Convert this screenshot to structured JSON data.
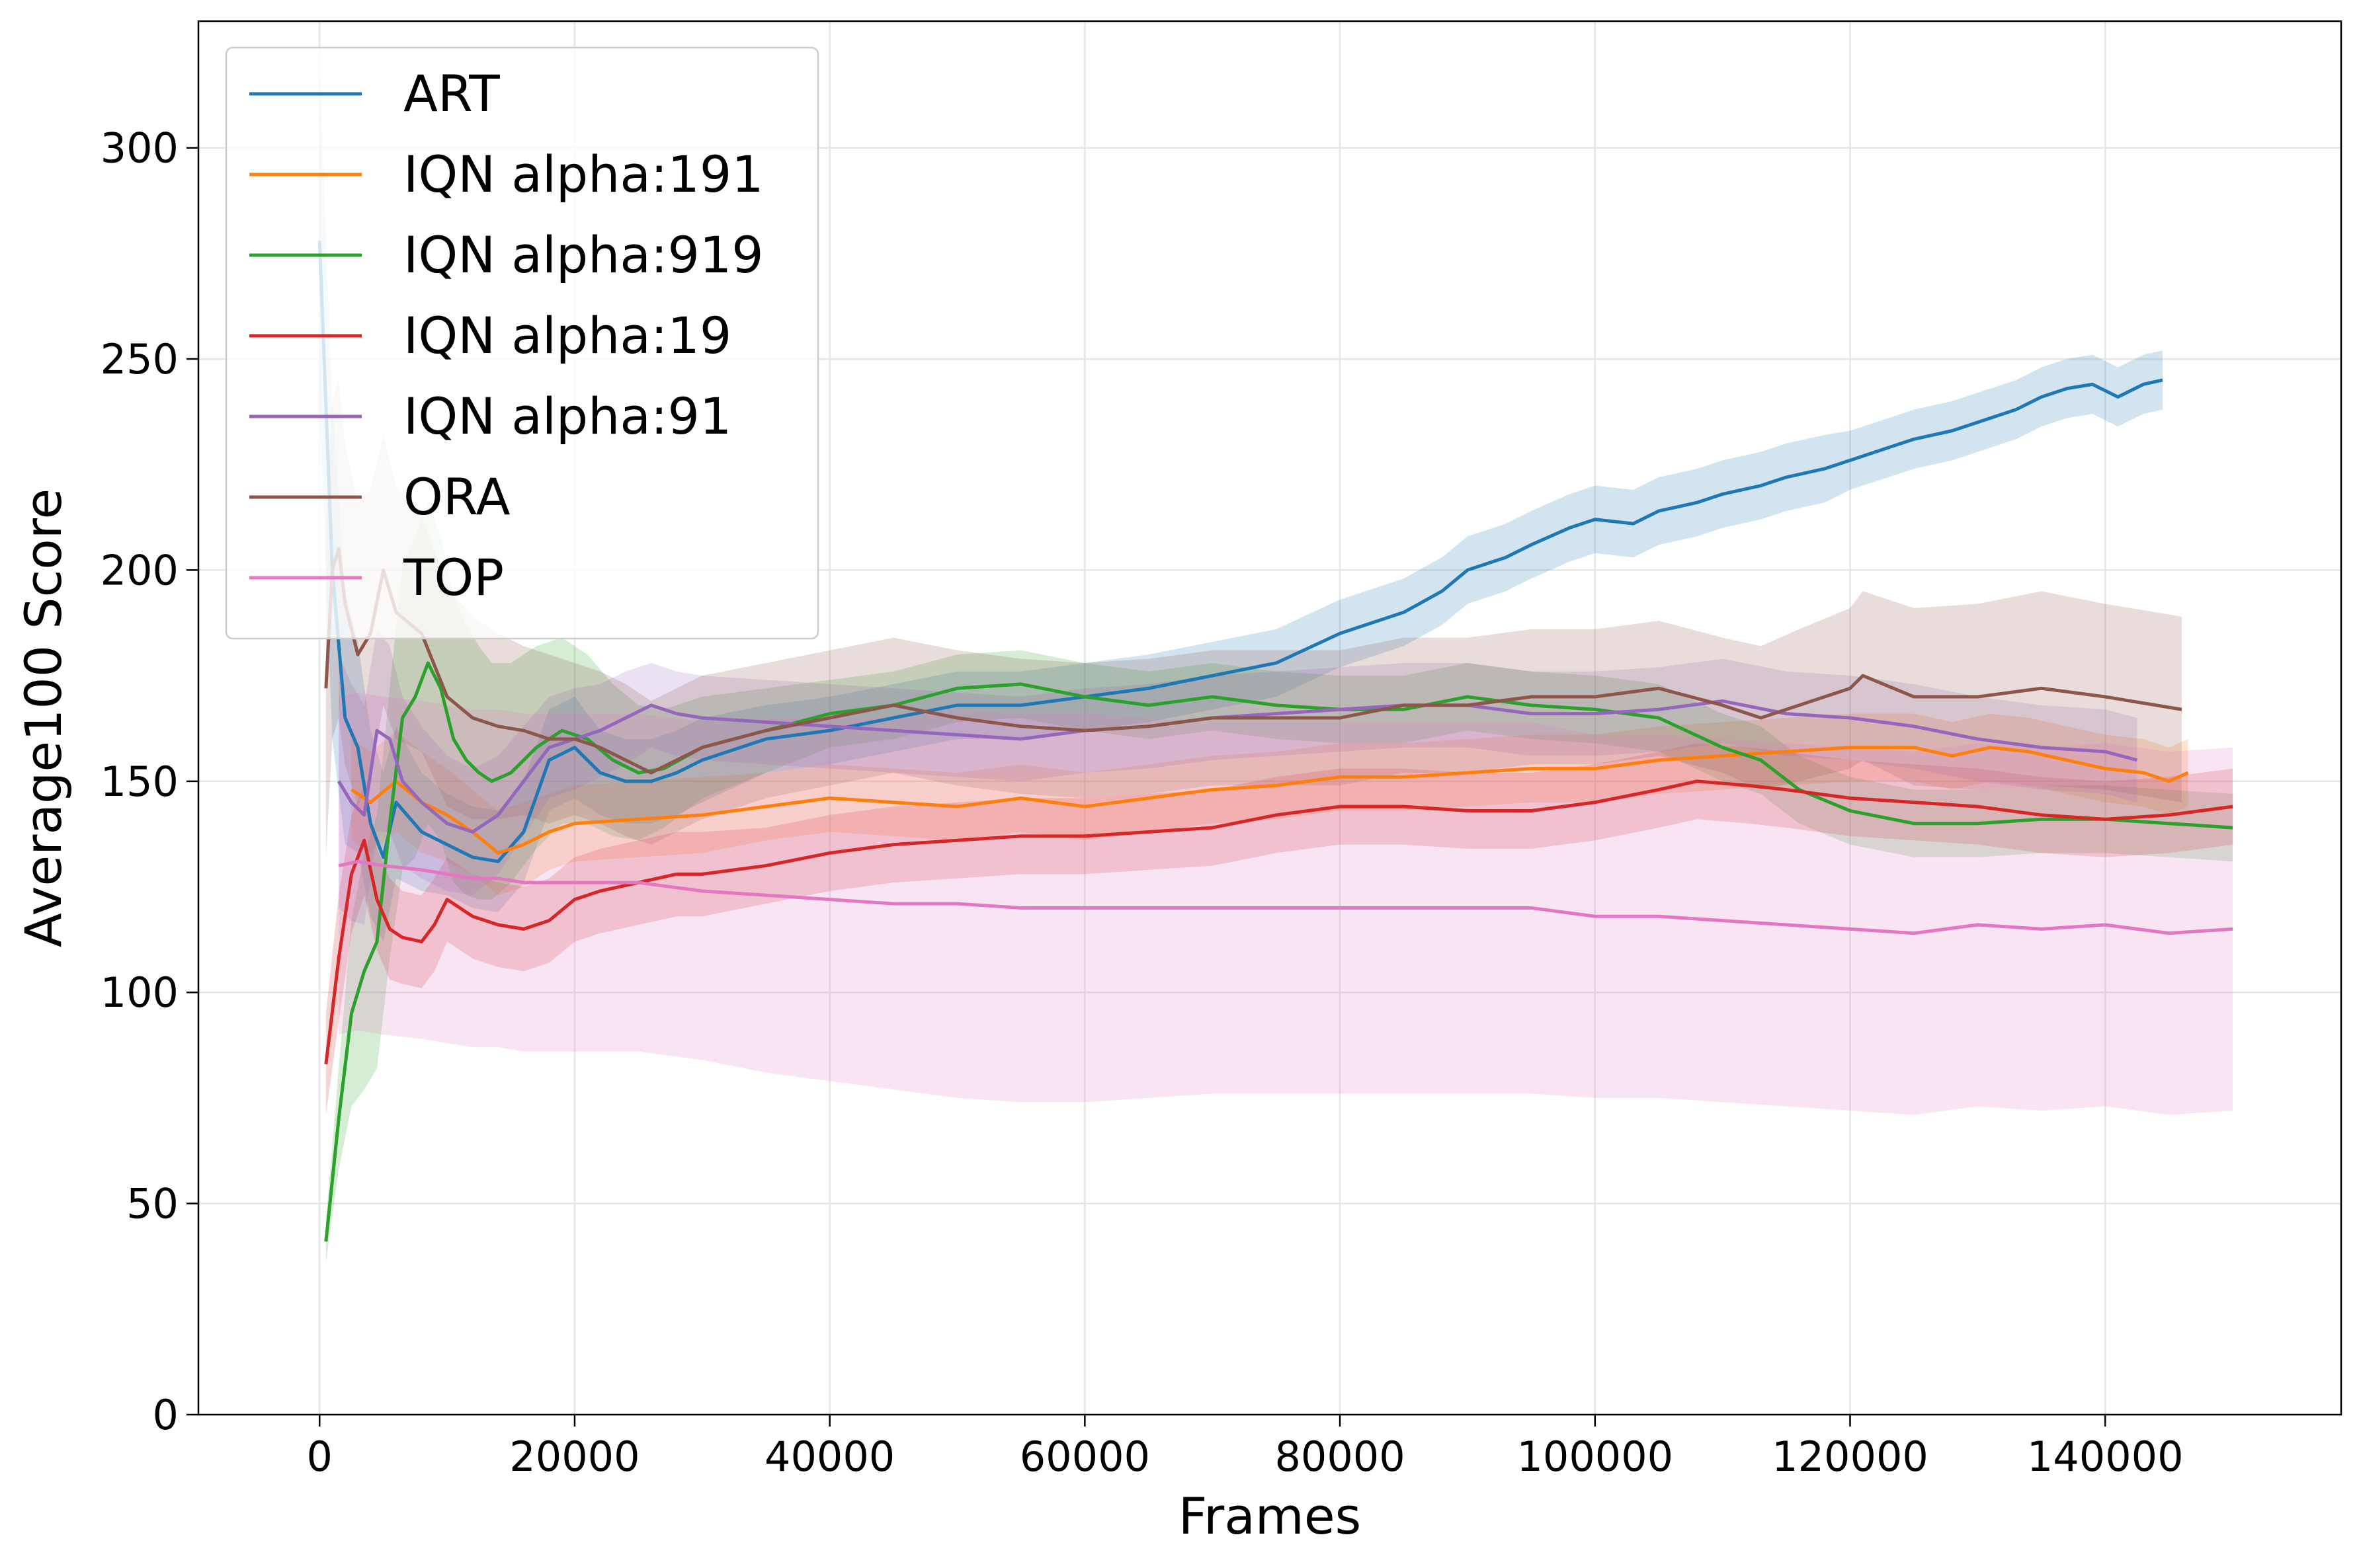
{
  "chart_data": {
    "type": "line",
    "title": "",
    "xlabel": "Frames",
    "ylabel": "Average100 Score",
    "xlim": [
      -9500,
      158500
    ],
    "ylim": [
      0,
      330
    ],
    "xticks": [
      0,
      20000,
      40000,
      60000,
      80000,
      100000,
      120000,
      140000
    ],
    "xtick_labels": [
      "0",
      "20000",
      "40000",
      "60000",
      "80000",
      "100000",
      "120000",
      "140000"
    ],
    "yticks": [
      0,
      50,
      100,
      150,
      200,
      250,
      300
    ],
    "ytick_labels": [
      "0",
      "50",
      "100",
      "150",
      "200",
      "250",
      "300"
    ],
    "grid": true,
    "legend_position": "top-left",
    "series": [
      {
        "name": "ART",
        "color": "#1f77b4",
        "x": [
          0,
          1000,
          2000,
          3000,
          4000,
          5000,
          6000,
          8000,
          10000,
          12000,
          14000,
          16000,
          18000,
          20000,
          22000,
          24000,
          26000,
          28000,
          30000,
          35000,
          40000,
          45000,
          50000,
          55000,
          60000,
          65000,
          70000,
          75000,
          80000,
          85000,
          88000,
          90000,
          93000,
          95000,
          98000,
          100000,
          103000,
          105000,
          108000,
          110000,
          113000,
          115000,
          118000,
          120000,
          123000,
          125000,
          128000,
          130000,
          133000,
          135000,
          137000,
          139000,
          141000,
          143000,
          144500
        ],
        "y": [
          278,
          200,
          165,
          158,
          140,
          132,
          145,
          138,
          135,
          132,
          131,
          138,
          155,
          158,
          152,
          150,
          150,
          152,
          155,
          160,
          162,
          165,
          168,
          168,
          170,
          172,
          175,
          178,
          185,
          190,
          195,
          200,
          203,
          206,
          210,
          212,
          211,
          214,
          216,
          218,
          220,
          222,
          224,
          226,
          229,
          231,
          233,
          235,
          238,
          241,
          243,
          244,
          241,
          244,
          245
        ],
        "band": [
          40,
          40,
          30,
          25,
          22,
          20,
          18,
          14,
          12,
          12,
          12,
          12,
          12,
          12,
          10,
          10,
          10,
          10,
          10,
          8,
          8,
          8,
          8,
          8,
          8,
          8,
          8,
          8,
          8,
          8,
          8,
          8,
          8,
          8,
          8,
          8,
          8,
          8,
          8,
          8,
          8,
          8,
          8,
          7,
          7,
          7,
          7,
          7,
          7,
          7,
          7,
          7,
          7,
          7,
          7
        ]
      },
      {
        "name": "IQN alpha:191",
        "color": "#ff7f0e",
        "x": [
          2500,
          4000,
          6000,
          8000,
          10000,
          12000,
          14000,
          16000,
          18000,
          20000,
          25000,
          30000,
          35000,
          40000,
          45000,
          50000,
          55000,
          60000,
          65000,
          70000,
          75000,
          80000,
          85000,
          90000,
          95000,
          100000,
          105000,
          110000,
          115000,
          120000,
          122000,
          125000,
          128000,
          131000,
          134000,
          137000,
          140000,
          143000,
          145000,
          146500
        ],
        "y": [
          148,
          145,
          150,
          145,
          142,
          138,
          133,
          135,
          138,
          140,
          141,
          142,
          144,
          146,
          145,
          144,
          146,
          144,
          146,
          148,
          149,
          151,
          151,
          152,
          153,
          153,
          155,
          156,
          157,
          158,
          158,
          158,
          156,
          158,
          157,
          155,
          153,
          152,
          150,
          152
        ],
        "band": [
          12,
          12,
          12,
          12,
          11,
          10,
          10,
          10,
          9,
          9,
          9,
          9,
          8,
          8,
          8,
          8,
          8,
          8,
          8,
          8,
          8,
          8,
          8,
          8,
          8,
          8,
          8,
          8,
          8,
          8,
          8,
          8,
          8,
          8,
          8,
          8,
          8,
          8,
          8,
          8
        ]
      },
      {
        "name": "IQN alpha:919",
        "color": "#2ca02c",
        "x": [
          500,
          1500,
          2500,
          3500,
          4500,
          5500,
          6500,
          7500,
          8500,
          9500,
          10500,
          11500,
          12500,
          13500,
          15000,
          17000,
          19000,
          21000,
          23000,
          25000,
          27000,
          30000,
          35000,
          40000,
          45000,
          50000,
          55000,
          60000,
          65000,
          70000,
          75000,
          80000,
          85000,
          90000,
          95000,
          100000,
          105000,
          110000,
          113000,
          116000,
          120000,
          125000,
          130000,
          135000,
          140000,
          145000,
          150000
        ],
        "y": [
          41,
          70,
          95,
          105,
          112,
          140,
          165,
          170,
          178,
          172,
          160,
          155,
          152,
          150,
          152,
          158,
          162,
          160,
          155,
          152,
          153,
          158,
          162,
          166,
          168,
          172,
          173,
          170,
          168,
          170,
          168,
          167,
          167,
          170,
          168,
          167,
          165,
          158,
          155,
          148,
          143,
          140,
          140,
          141,
          141,
          140,
          139
        ],
        "band": [
          5,
          12,
          22,
          28,
          30,
          32,
          36,
          38,
          38,
          36,
          34,
          32,
          30,
          28,
          26,
          24,
          22,
          20,
          18,
          16,
          14,
          12,
          10,
          8,
          8,
          8,
          8,
          8,
          8,
          8,
          8,
          8,
          8,
          8,
          8,
          8,
          8,
          8,
          8,
          8,
          8,
          8,
          8,
          8,
          8,
          8,
          8
        ]
      },
      {
        "name": "IQN alpha:19",
        "color": "#d62728",
        "x": [
          500,
          1500,
          2500,
          3500,
          4500,
          5500,
          6500,
          8000,
          9000,
          10000,
          12000,
          14000,
          16000,
          18000,
          20000,
          22000,
          25000,
          28000,
          30000,
          35000,
          40000,
          45000,
          50000,
          55000,
          60000,
          65000,
          70000,
          75000,
          80000,
          85000,
          90000,
          95000,
          100000,
          105000,
          108000,
          112000,
          115000,
          120000,
          125000,
          130000,
          135000,
          140000,
          145000,
          150000
        ],
        "y": [
          83,
          108,
          128,
          136,
          122,
          115,
          113,
          112,
          116,
          122,
          118,
          116,
          115,
          117,
          122,
          124,
          126,
          128,
          128,
          130,
          133,
          135,
          136,
          137,
          137,
          138,
          139,
          142,
          144,
          144,
          143,
          143,
          145,
          148,
          150,
          149,
          148,
          146,
          145,
          144,
          142,
          141,
          142,
          144
        ],
        "band": [
          12,
          15,
          14,
          13,
          12,
          12,
          11,
          11,
          11,
          10,
          10,
          10,
          10,
          10,
          10,
          10,
          10,
          10,
          10,
          9,
          9,
          9,
          9,
          9,
          9,
          9,
          9,
          9,
          9,
          9,
          9,
          9,
          9,
          9,
          9,
          9,
          9,
          9,
          9,
          9,
          9,
          9,
          9,
          9
        ]
      },
      {
        "name": "IQN alpha:91",
        "color": "#9467bd",
        "x": [
          1500,
          2500,
          3500,
          4500,
          5500,
          6500,
          8000,
          10000,
          12000,
          14000,
          16000,
          18000,
          20000,
          22000,
          24000,
          26000,
          28000,
          30000,
          35000,
          40000,
          45000,
          50000,
          55000,
          60000,
          65000,
          70000,
          75000,
          80000,
          85000,
          90000,
          95000,
          100000,
          105000,
          110000,
          115000,
          120000,
          125000,
          130000,
          135000,
          140000,
          142500
        ],
        "y": [
          150,
          145,
          142,
          162,
          160,
          150,
          145,
          140,
          138,
          142,
          150,
          158,
          160,
          162,
          165,
          168,
          166,
          165,
          164,
          163,
          162,
          161,
          160,
          162,
          163,
          165,
          166,
          167,
          168,
          168,
          166,
          166,
          167,
          169,
          166,
          165,
          163,
          160,
          158,
          157,
          155
        ],
        "band": [
          30,
          28,
          26,
          24,
          22,
          20,
          18,
          16,
          15,
          14,
          13,
          12,
          12,
          11,
          11,
          10,
          10,
          10,
          10,
          10,
          10,
          10,
          10,
          10,
          10,
          10,
          10,
          10,
          10,
          10,
          10,
          10,
          10,
          10,
          10,
          10,
          10,
          10,
          10,
          10,
          10
        ]
      },
      {
        "name": "ORA",
        "color": "#8c564b",
        "x": [
          500,
          1000,
          1500,
          2000,
          3000,
          4000,
          5000,
          6000,
          8000,
          10000,
          12000,
          14000,
          16000,
          18000,
          20000,
          22000,
          24000,
          26000,
          28000,
          30000,
          35000,
          40000,
          45000,
          50000,
          55000,
          60000,
          65000,
          70000,
          75000,
          80000,
          85000,
          90000,
          95000,
          100000,
          105000,
          110000,
          113000,
          116000,
          120000,
          121000,
          125000,
          130000,
          135000,
          140000,
          146000
        ],
        "y": [
          172,
          200,
          205,
          192,
          180,
          185,
          200,
          190,
          185,
          170,
          165,
          163,
          162,
          160,
          160,
          158,
          155,
          152,
          155,
          158,
          162,
          165,
          168,
          165,
          163,
          162,
          163,
          165,
          165,
          165,
          168,
          168,
          170,
          170,
          172,
          168,
          165,
          168,
          172,
          175,
          170,
          170,
          172,
          170,
          167
        ],
        "band": [
          40,
          40,
          40,
          38,
          36,
          34,
          32,
          30,
          28,
          26,
          24,
          22,
          20,
          20,
          18,
          18,
          18,
          17,
          17,
          17,
          16,
          16,
          16,
          16,
          16,
          16,
          16,
          16,
          16,
          16,
          16,
          16,
          16,
          16,
          16,
          16,
          17,
          18,
          19,
          20,
          21,
          22,
          23,
          22,
          22
        ]
      },
      {
        "name": "TOP",
        "color": "#e377c2",
        "x": [
          1500,
          3000,
          5000,
          8000,
          10000,
          12000,
          14000,
          16000,
          18000,
          20000,
          25000,
          30000,
          35000,
          40000,
          45000,
          50000,
          55000,
          60000,
          65000,
          70000,
          75000,
          80000,
          85000,
          90000,
          95000,
          100000,
          105000,
          110000,
          115000,
          120000,
          125000,
          130000,
          135000,
          140000,
          145000,
          150000
        ],
        "y": [
          130,
          131,
          130,
          129,
          128,
          127,
          127,
          126,
          126,
          126,
          126,
          124,
          123,
          122,
          121,
          121,
          120,
          120,
          120,
          120,
          120,
          120,
          120,
          120,
          120,
          118,
          118,
          117,
          116,
          115,
          114,
          116,
          115,
          116,
          114,
          115
        ],
        "band": [
          40,
          40,
          40,
          40,
          40,
          40,
          40,
          40,
          40,
          40,
          40,
          40,
          42,
          43,
          44,
          46,
          46,
          46,
          45,
          44,
          44,
          44,
          44,
          44,
          44,
          43,
          43,
          43,
          43,
          43,
          43,
          43,
          43,
          43,
          43,
          43
        ]
      }
    ]
  }
}
